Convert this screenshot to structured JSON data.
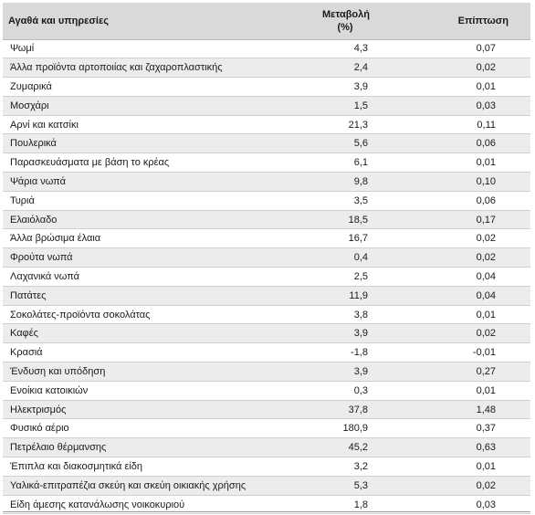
{
  "headers": {
    "item": "Αγαθά και υπηρεσίες",
    "change": "Μεταβολή",
    "change_unit": "(%)",
    "impact": "Επίπτωση"
  },
  "rows": [
    {
      "name": "Ψωμί",
      "change": "4,3",
      "impact": "0,07"
    },
    {
      "name": "Άλλα προϊόντα αρτοποιίας και ζαχαροπλαστικής",
      "change": "2,4",
      "impact": "0,02"
    },
    {
      "name": "Ζυμαρικά",
      "change": "3,9",
      "impact": "0,01"
    },
    {
      "name": "Μοσχάρι",
      "change": "1,5",
      "impact": "0,03"
    },
    {
      "name": "Αρνί και κατσίκι",
      "change": "21,3",
      "impact": "0,11"
    },
    {
      "name": "Πουλερικά",
      "change": "5,6",
      "impact": "0,06"
    },
    {
      "name": "Παρασκευάσματα με βάση το κρέας",
      "change": "6,1",
      "impact": "0,01"
    },
    {
      "name": "Ψάρια νωπά",
      "change": "9,8",
      "impact": "0,10"
    },
    {
      "name": "Τυριά",
      "change": "3,5",
      "impact": "0,06"
    },
    {
      "name": "Ελαιόλαδο",
      "change": "18,5",
      "impact": "0,17"
    },
    {
      "name": "Άλλα βρώσιμα έλαια",
      "change": "16,7",
      "impact": "0,02"
    },
    {
      "name": "Φρούτα νωπά",
      "change": "0,4",
      "impact": "0,02"
    },
    {
      "name": "Λαχανικά νωπά",
      "change": "2,5",
      "impact": "0,04"
    },
    {
      "name": "Πατάτες",
      "change": "11,9",
      "impact": "0,04"
    },
    {
      "name": "Σοκολάτες-προϊόντα σοκολάτας",
      "change": "3,8",
      "impact": "0,01"
    },
    {
      "name": "Καφές",
      "change": "3,9",
      "impact": "0,02"
    },
    {
      "name": "Κρασιά",
      "change": "-1,8",
      "impact": "-0,01"
    },
    {
      "name": "Ένδυση και υπόδηση",
      "change": "3,9",
      "impact": "0,27"
    },
    {
      "name": "Ενοίκια κατοικιών",
      "change": "0,3",
      "impact": "0,01"
    },
    {
      "name": "Ηλεκτρισμός",
      "change": "37,8",
      "impact": "1,48"
    },
    {
      "name": "Φυσικό αέριο",
      "change": "180,9",
      "impact": "0,37"
    },
    {
      "name": "Πετρέλαιο θέρμανσης",
      "change": "45,2",
      "impact": "0,63"
    },
    {
      "name": "Έπιπλα και διακοσμητικά είδη",
      "change": "3,2",
      "impact": "0,01"
    },
    {
      "name": "Υαλικά-επιτραπέζια σκεύη και σκεύη οικιακής χρήσης",
      "change": "5,3",
      "impact": "0,02"
    },
    {
      "name": "Είδη άμεσης κατανάλωσης νοικοκυριού",
      "change": "1,8",
      "impact": "0,03"
    }
  ]
}
